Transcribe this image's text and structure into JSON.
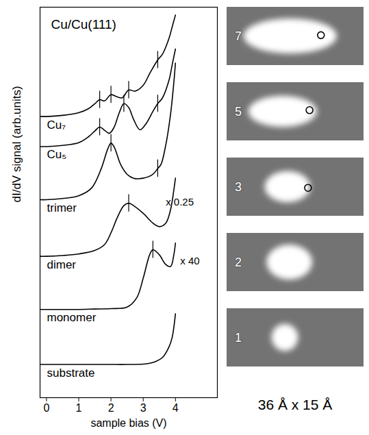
{
  "chart_data": {
    "type": "line",
    "title": "Cu/Cu(111)",
    "x_label": "sample bias (V)",
    "y_label": "dI/dV signal (arb.units)",
    "xlim": [
      -0.2,
      5.3
    ],
    "xticks": [
      0,
      1,
      2,
      3,
      4
    ],
    "ylim": [
      0,
      100
    ],
    "tick_labels": "x",
    "grid": false,
    "color": "#000000",
    "series": [
      {
        "name": "substrate",
        "offset": 8.5,
        "x": [
          -0.2,
          0,
          0.5,
          1,
          1.5,
          2,
          2.5,
          3,
          3.2,
          3.4,
          3.6,
          3.8,
          3.9,
          4.0
        ],
        "values": [
          0,
          0,
          0,
          0,
          0,
          0,
          0,
          0.1,
          0.3,
          0.8,
          1.8,
          4.5,
          7,
          13
        ],
        "peaks": []
      },
      {
        "name": "monomer",
        "offset": 22.6,
        "x": [
          -0.2,
          0,
          0.5,
          1,
          1.5,
          2,
          2.5,
          2.8,
          3,
          3.2,
          3.3,
          3.5,
          3.7,
          3.85,
          3.95,
          4
        ],
        "values": [
          0,
          0,
          0,
          0,
          0.1,
          0.2,
          0.6,
          3,
          8,
          14,
          15.3,
          14,
          11.5,
          11,
          14,
          17
        ],
        "peaks": [
          3.3
        ]
      },
      {
        "name": "dimer",
        "offset": 36.2,
        "x": [
          -0.2,
          0,
          0.5,
          1,
          1.5,
          1.8,
          2,
          2.2,
          2.4,
          2.55,
          2.7,
          3,
          3.3,
          3.5,
          3.7,
          3.85,
          3.95,
          4
        ],
        "values": [
          0,
          0,
          0.2,
          0.6,
          1.5,
          3,
          6,
          10,
          13,
          13.6,
          13,
          11,
          8.5,
          7.6,
          8.5,
          12,
          17,
          20
        ],
        "peaks": [
          2.55
        ]
      },
      {
        "name": "trimer",
        "offset": 50.7,
        "x": [
          -0.2,
          0,
          0.5,
          1,
          1.4,
          1.7,
          1.9,
          2,
          2.1,
          2.3,
          2.5,
          2.7,
          3,
          3.3,
          3.45,
          3.55,
          3.7,
          3.85,
          3.95,
          4
        ],
        "values": [
          0,
          0,
          0.3,
          1,
          3,
          8,
          13,
          14.5,
          13.5,
          9,
          6.5,
          5.5,
          5.5,
          6.5,
          8,
          9,
          14,
          22,
          30,
          35
        ],
        "peaks": [
          2.0,
          3.45
        ]
      },
      {
        "name": "Cu₅",
        "offset": 64.3,
        "x": [
          -0.2,
          0,
          0.5,
          1,
          1.3,
          1.5,
          1.65,
          1.8,
          1.95,
          2.1,
          2.25,
          2.4,
          2.55,
          2.7,
          2.9,
          3.1,
          3.3,
          3.45,
          3.6,
          3.8,
          3.9,
          4.0
        ],
        "values": [
          0,
          0,
          0.3,
          1,
          2.5,
          4,
          5,
          4.2,
          3.4,
          5,
          8.5,
          11,
          10,
          7,
          4.3,
          6,
          9,
          11,
          12.5,
          17,
          21,
          25
        ],
        "peaks": [
          1.65,
          2.4,
          3.45
        ]
      },
      {
        "name": "Cu₇",
        "offset": 72,
        "x": [
          -0.2,
          0,
          0.5,
          1,
          1.3,
          1.5,
          1.65,
          1.8,
          2,
          2.2,
          2.35,
          2.55,
          2.75,
          3,
          3.2,
          3.45,
          3.6,
          3.8,
          3.9,
          4
        ],
        "values": [
          0,
          0,
          0.3,
          1,
          2,
          3.3,
          4.3,
          4,
          5.6,
          5,
          4.8,
          6.8,
          6.5,
          8,
          11,
          14.5,
          16,
          20,
          23,
          26
        ],
        "peaks": [
          1.65,
          2.0,
          2.55,
          3.45
        ]
      }
    ],
    "annotations": [
      {
        "text": "x 0.25",
        "x": 3.7,
        "y": 50
      },
      {
        "text": "x 40",
        "x": 4.15,
        "y": 35
      }
    ]
  },
  "images": {
    "caption": "36 Å x 15 Å",
    "extent": [
      36,
      15
    ],
    "panels": [
      {
        "label": "7",
        "center": [
          16.7,
          7.5
        ],
        "size": [
          24.5,
          9
        ],
        "marker": [
          24.8,
          7.3
        ]
      },
      {
        "label": "5",
        "center": [
          14.7,
          7.5
        ],
        "size": [
          18,
          8
        ],
        "marker": [
          21.8,
          7.2
        ]
      },
      {
        "label": "3",
        "center": [
          16,
          7.5
        ],
        "size": [
          12,
          8
        ],
        "marker": [
          21.4,
          7.8
        ]
      },
      {
        "label": "2",
        "center": [
          16.5,
          7.5
        ],
        "size": [
          12,
          9
        ],
        "marker": null
      },
      {
        "label": "1",
        "center": [
          15.3,
          7.5
        ],
        "size": [
          7,
          7
        ],
        "marker": null
      }
    ]
  }
}
